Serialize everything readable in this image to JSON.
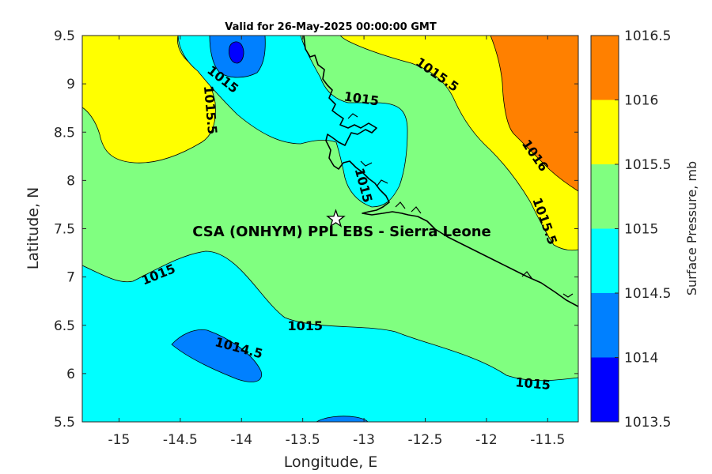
{
  "title": "Valid for 26-May-2025 00:00:00 GMT",
  "annotation": "CSA (ONHYM) PPL EBS  - Sierra Leone",
  "chart_data": {
    "type": "contour_map",
    "xlabel": "Longitude, E",
    "ylabel": "Latitude, N",
    "xlim": [
      -15.3,
      -11.25
    ],
    "ylim": [
      5.5,
      9.5
    ],
    "xticks": [
      -15,
      -14.5,
      -14,
      -13.5,
      -13,
      -12.5,
      -12,
      -11.5
    ],
    "xtick_labels": [
      "-15",
      "-14.5",
      "-14",
      "-13.5",
      "-13",
      "-12.5",
      "-12",
      "-11.5"
    ],
    "yticks": [
      5.5,
      6,
      6.5,
      7,
      7.5,
      8,
      8.5,
      9,
      9.5
    ],
    "ytick_labels": [
      "5.5",
      "6",
      "6.5",
      "7",
      "7.5",
      "8",
      "8.5",
      "9",
      "9.5"
    ],
    "marker": {
      "label": "CSA (ONHYM) PPL EBS  - Sierra Leone",
      "lon": -13.23,
      "lat": 7.6,
      "symbol": "star"
    },
    "contour_labels": [
      {
        "text": "1015",
        "lon": -14.15,
        "lat": 9.05,
        "angle": 38
      },
      {
        "text": "1015.5",
        "lon": -14.25,
        "lat": 8.73,
        "angle": 85
      },
      {
        "text": "1015",
        "lon": -13.02,
        "lat": 8.85,
        "angle": 8
      },
      {
        "text": "1015.5",
        "lon": -12.4,
        "lat": 9.1,
        "angle": 35
      },
      {
        "text": "1016",
        "lon": -11.6,
        "lat": 8.26,
        "angle": 55
      },
      {
        "text": "1015",
        "lon": -13.0,
        "lat": 7.95,
        "angle": 75
      },
      {
        "text": "1015.5",
        "lon": -11.52,
        "lat": 7.58,
        "angle": 70
      },
      {
        "text": "1015",
        "lon": -14.68,
        "lat": 7.03,
        "angle": -22
      },
      {
        "text": "1015",
        "lon": -13.48,
        "lat": 6.5,
        "angle": 0
      },
      {
        "text": "1014.5",
        "lon": -14.02,
        "lat": 6.27,
        "angle": 15
      },
      {
        "text": "1015",
        "lon": -11.62,
        "lat": 5.9,
        "angle": 5
      }
    ],
    "colorbar": {
      "label": "Surface Pressure, mb",
      "levels": [
        1013.5,
        1014,
        1014.5,
        1015,
        1015.5,
        1016,
        1016.5
      ],
      "tick_labels": [
        "1013.5",
        "1014",
        "1014.5",
        "1015",
        "1015.5",
        "1016",
        "1016.5"
      ],
      "colors": [
        "#0000ff",
        "#0080ff",
        "#00ffff",
        "#80ff80",
        "#ffff00",
        "#ff8000",
        "#ff0000"
      ]
    },
    "fill_colors": {
      "1014-1014.5": "#0080ff",
      "1014.5-1015": "#00ffff",
      "1015-1015.5": "#80ff80",
      "1015.5-1016": "#ffff00",
      "1016-1016.5": "#ff8000"
    }
  }
}
